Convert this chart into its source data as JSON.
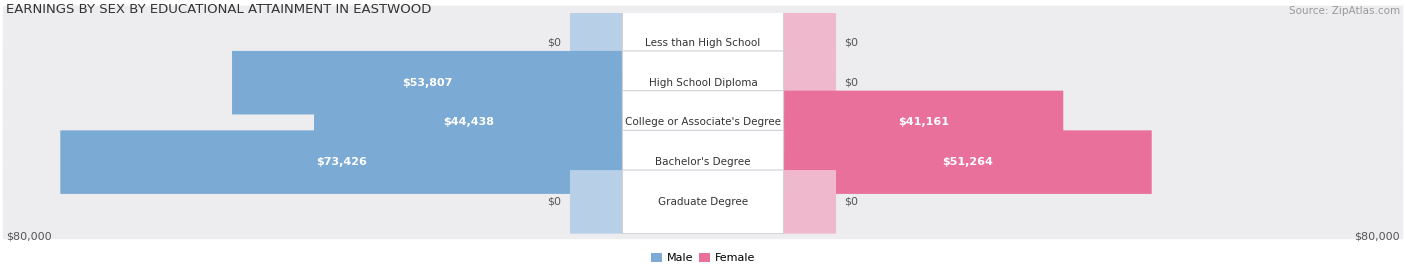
{
  "title": "EARNINGS BY SEX BY EDUCATIONAL ATTAINMENT IN EASTWOOD",
  "source": "Source: ZipAtlas.com",
  "categories": [
    "Less than High School",
    "High School Diploma",
    "College or Associate's Degree",
    "Bachelor's Degree",
    "Graduate Degree"
  ],
  "male_values": [
    0,
    53807,
    44438,
    73426,
    0
  ],
  "female_values": [
    0,
    0,
    41161,
    51264,
    0
  ],
  "male_color": "#7baad4",
  "female_color": "#e8709a",
  "male_color_light": "#b8cfe8",
  "female_color_light": "#f0b8cc",
  "max_value": 80000,
  "row_bg_color": "#ededf0",
  "legend_male": "Male",
  "legend_female": "Female",
  "axis_label_left": "$80,000",
  "axis_label_right": "$80,000",
  "title_fontsize": 9.5,
  "source_fontsize": 7.5,
  "label_fontsize": 8,
  "category_fontsize": 7.5,
  "axis_fontsize": 8
}
